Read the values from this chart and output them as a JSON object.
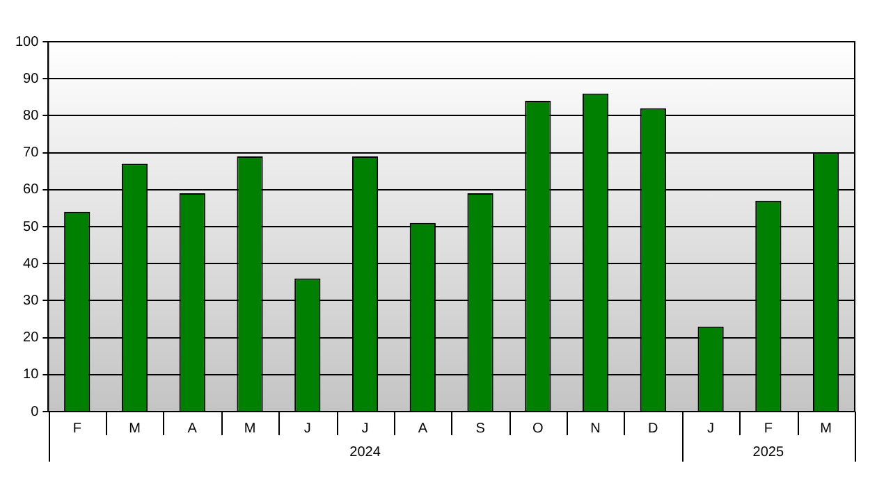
{
  "chart_data": {
    "type": "bar",
    "categories": [
      "F",
      "M",
      "A",
      "M",
      "J",
      "J",
      "A",
      "S",
      "O",
      "N",
      "D",
      "J",
      "F",
      "M"
    ],
    "values": [
      54,
      67,
      59,
      69,
      36,
      69,
      51,
      59,
      84,
      86,
      82,
      23,
      57,
      70
    ],
    "color": "#008000",
    "ylim": [
      0,
      100
    ],
    "yticks": [
      0,
      10,
      20,
      30,
      40,
      50,
      60,
      70,
      80,
      90,
      100
    ],
    "grid": "y",
    "annotations": [
      "2024",
      "2025"
    ]
  }
}
